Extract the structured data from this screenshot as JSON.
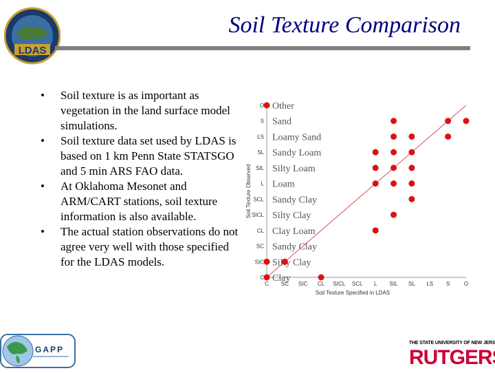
{
  "slide": {
    "title": "Soil Texture Comparison",
    "bullets": [
      "Soil texture is as important as vegetation in the land surface model simulations.",
      "Soil texture data set used by LDAS is based on 1 km Penn State STATSGO and 5 min ARS FAO data.",
      "At Oklahoma Mesonet and ARM/CART stations, soil texture information is also available.",
      "The actual station observations do not agree very well with those specified for the LDAS models."
    ]
  },
  "logos": {
    "ldas_text": "LDAS",
    "gapp_text": "GAPP",
    "rutgers_top": "THE STATE UNIVERSITY OF NEW JERSEY",
    "rutgers_text": "RUTGERS"
  },
  "chart_data": {
    "type": "scatter",
    "title": "",
    "xlabel": "Soil Texture Specified in LDAS",
    "ylabel": "Soil Texture Observed",
    "x_ticks": [
      "C",
      "SC",
      "SIC",
      "CL",
      "SICL",
      "SCL",
      "L",
      "SIL",
      "SL",
      "LS",
      "S",
      "O"
    ],
    "y_ticks": [
      "O",
      "S",
      "LS",
      "SL",
      "SIL",
      "L",
      "SCL",
      "SICL",
      "CL",
      "SC",
      "SIC",
      "C"
    ],
    "legend": [
      "Other",
      "Sand",
      "Loamy Sand",
      "Sandy Loam",
      "Silty Loam",
      "Loam",
      "Sandy Clay",
      "Silty Clay",
      "Clay Loam",
      "Sandy Clay",
      "Silty Clay",
      "Clay"
    ],
    "points": [
      {
        "x": "S",
        "y": "S"
      },
      {
        "x": "O",
        "y": "S"
      },
      {
        "x": "SIL",
        "y": "S"
      },
      {
        "x": "S",
        "y": "LS"
      },
      {
        "x": "SIL",
        "y": "LS"
      },
      {
        "x": "SL",
        "y": "LS"
      },
      {
        "x": "L",
        "y": "SL"
      },
      {
        "x": "SIL",
        "y": "SL"
      },
      {
        "x": "SL",
        "y": "SL"
      },
      {
        "x": "L",
        "y": "SIL"
      },
      {
        "x": "SIL",
        "y": "SIL"
      },
      {
        "x": "SL",
        "y": "SIL"
      },
      {
        "x": "L",
        "y": "L"
      },
      {
        "x": "SIL",
        "y": "L"
      },
      {
        "x": "SL",
        "y": "L"
      },
      {
        "x": "SL",
        "y": "SCL"
      },
      {
        "x": "SIL",
        "y": "SICL"
      },
      {
        "x": "L",
        "y": "CL"
      },
      {
        "x": "CL",
        "y": "C"
      },
      {
        "x": "C",
        "y": "SIC"
      },
      {
        "x": "C",
        "y": "C"
      },
      {
        "x": "C",
        "y": "O"
      },
      {
        "x": "SC",
        "y": "SIC"
      }
    ],
    "diagonal": true,
    "point_color": "#e01010",
    "diagonal_color": "#e05050"
  },
  "colors": {
    "title": "#000080",
    "rule": "#808080",
    "rutgers_red": "#cc0033"
  }
}
